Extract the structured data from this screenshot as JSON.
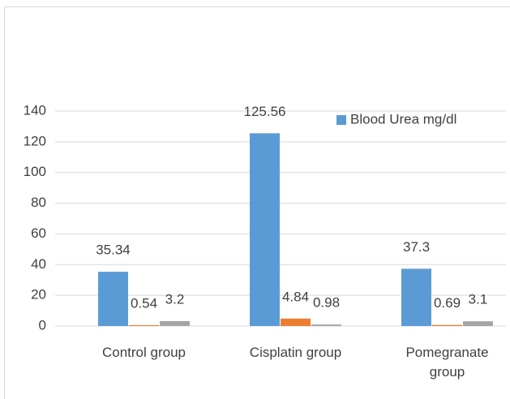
{
  "chart_data": {
    "type": "bar",
    "categories": [
      "Control group",
      "Cisplatin group",
      "Pomegranate group"
    ],
    "series": [
      {
        "name": "Blood Urea mg/dl",
        "color": "#5b9bd5",
        "values": [
          35.34,
          125.56,
          37.3
        ]
      },
      {
        "color": "#ed7d31",
        "values": [
          0.54,
          4.84,
          0.69
        ]
      },
      {
        "color": "#a5a5a5",
        "values": [
          3.2,
          0.98,
          3.1
        ]
      }
    ],
    "ylim": [
      0,
      140
    ],
    "yticks": [
      0,
      20,
      40,
      60,
      80,
      100,
      120,
      140
    ],
    "grid": true,
    "legend": "top-right"
  }
}
